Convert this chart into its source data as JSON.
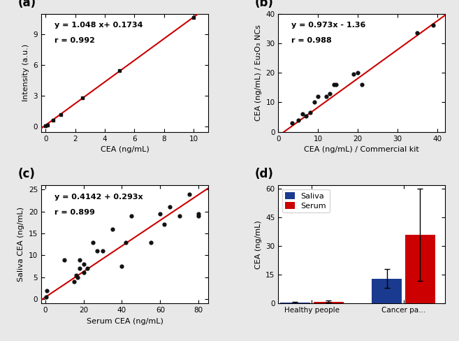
{
  "panel_a": {
    "label": "(a)",
    "scatter_x": [
      0,
      0.1,
      0.5,
      1.0,
      2.5,
      5.0,
      10.0
    ],
    "scatter_y": [
      0.1,
      0.18,
      0.65,
      1.22,
      2.8,
      5.44,
      10.65
    ],
    "scatter_yerr": [
      0.05,
      0.05,
      0.06,
      0.1,
      0.12,
      0.12,
      0.15
    ],
    "line_eq": "y = 1.048 x+ 0.1734",
    "r_val": "r = 0.992",
    "slope": 1.048,
    "intercept": 0.1734,
    "xlabel": "CEA (ng/mL)",
    "ylabel": "Intensity (a.u.)",
    "xlim": [
      -0.3,
      11
    ],
    "ylim": [
      -0.5,
      11
    ],
    "xticks": [
      0,
      2,
      4,
      6,
      8,
      10
    ],
    "yticks": [
      0,
      3,
      6,
      9
    ]
  },
  "panel_b": {
    "label": "(b)",
    "scatter_x": [
      3.5,
      5,
      6,
      7,
      8,
      9,
      10,
      12,
      13,
      14,
      14.5,
      19,
      20,
      21,
      35,
      39
    ],
    "scatter_y": [
      3,
      4,
      6,
      5.5,
      6.5,
      10,
      12,
      12,
      13,
      16,
      16,
      19.5,
      20,
      16,
      33.5,
      36
    ],
    "line_eq": "y = 0.973x - 1.36",
    "r_val": "r = 0.988",
    "slope": 0.973,
    "intercept": -1.36,
    "xlabel": "CEA (ng/mL) / Commercial kit",
    "ylabel": "CEA (ng/mL) / Eu₂O₃ NCs",
    "xlim": [
      0,
      42
    ],
    "ylim": [
      0,
      40
    ],
    "xticks": [
      0,
      10,
      20,
      30,
      40
    ],
    "yticks": [
      0,
      10,
      20,
      30,
      40
    ]
  },
  "panel_c": {
    "label": "(c)",
    "scatter_x": [
      0.5,
      1,
      10,
      15,
      16,
      17,
      18,
      18,
      20,
      20,
      22,
      25,
      27,
      30,
      35,
      40,
      42,
      45,
      55,
      60,
      62,
      65,
      70,
      75,
      80,
      80
    ],
    "scatter_y": [
      0.5,
      2,
      9,
      4,
      5.5,
      5,
      7,
      9,
      6,
      8,
      7,
      13,
      11,
      11,
      16,
      7.5,
      13,
      19,
      13,
      19.5,
      17,
      21,
      19,
      24,
      19.5,
      19
    ],
    "line_eq": "y = 0.4142 + 0.293x",
    "r_val": "r = 0.899",
    "slope": 0.293,
    "intercept": 0.4142,
    "xlabel": "Serum CEA (ng/mL)",
    "ylabel": "Saliva CEA (ng/mL)",
    "xlim": [
      -2,
      85
    ],
    "ylim": [
      -1,
      26
    ],
    "xticks": [
      0,
      20,
      40,
      60,
      80
    ],
    "yticks": [
      0,
      5,
      10,
      15,
      20,
      25
    ]
  },
  "panel_d": {
    "label": "(d)",
    "categories": [
      "Healthy people",
      "Cancer pa..."
    ],
    "saliva_means": [
      0.5,
      13.0
    ],
    "saliva_errs": [
      0.3,
      5.0
    ],
    "serum_means": [
      1.0,
      36.0
    ],
    "serum_errs": [
      0.5,
      24.0
    ],
    "ylabel": "CEA (ng/mL)",
    "ylim": [
      0,
      62
    ],
    "yticks": [
      0,
      15,
      30,
      45,
      60
    ],
    "legend_labels": [
      "Saliva",
      "Serum"
    ],
    "bar_colors": [
      "#1a3a8f",
      "#cc0000"
    ]
  },
  "line_color": "#cc0000",
  "scatter_color": "#111111",
  "fig_facecolor": "#e8e8e8",
  "plot_facecolor": "#ffffff",
  "label_fontsize": 8,
  "tick_fontsize": 7.5,
  "annotation_fontsize": 8,
  "panel_label_fontsize": 12
}
